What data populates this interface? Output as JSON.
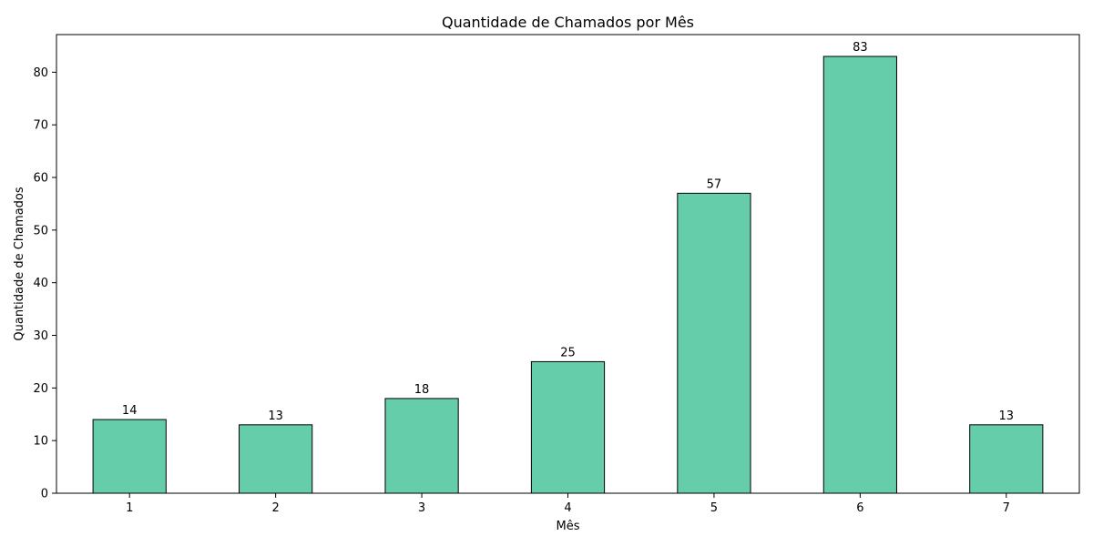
{
  "chart_data": {
    "type": "bar",
    "title": "Quantidade de Chamados por Mês",
    "xlabel": "Mês",
    "ylabel": "Quantidade de Chamados",
    "categories": [
      "1",
      "2",
      "3",
      "4",
      "5",
      "6",
      "7"
    ],
    "values": [
      14,
      13,
      18,
      25,
      57,
      83,
      13
    ],
    "ylim": [
      0,
      87.15
    ],
    "yticks": [
      0,
      10,
      20,
      30,
      40,
      50,
      60,
      70,
      80
    ],
    "bar_color": "#66cdaa",
    "bar_edge_color": "#000000",
    "grid": false,
    "legend": "none",
    "data_labels": true
  }
}
